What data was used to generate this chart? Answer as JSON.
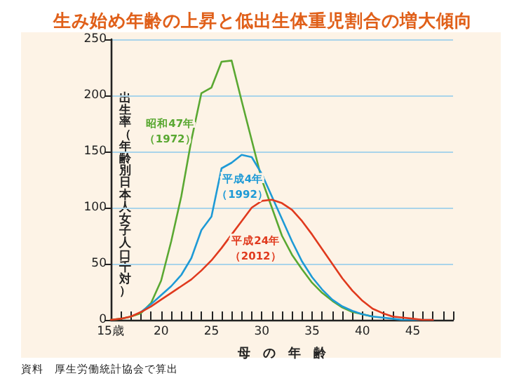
{
  "chart_data": {
    "type": "line",
    "title": "生み始め年齢の上昇と低出生体重児割合の増大傾向",
    "xlabel": "母　の　年　齢",
    "ylabel": "出生率（年齢別日本人女子人口千対）",
    "annotations": [
      "資料　厚生労働統計協会で算出"
    ],
    "x": [
      15,
      16,
      17,
      18,
      19,
      20,
      21,
      22,
      23,
      24,
      25,
      26,
      27,
      28,
      29,
      30,
      31,
      32,
      33,
      34,
      35,
      36,
      37,
      38,
      39,
      40,
      41,
      42,
      43,
      44,
      45,
      46,
      47
    ],
    "series": [
      {
        "name": "昭和47年（1972）",
        "color": "#5aa832",
        "values": [
          0,
          1,
          3,
          6,
          15,
          35,
          70,
          110,
          160,
          202,
          207,
          230,
          231,
          195,
          160,
          125,
          100,
          75,
          58,
          45,
          33,
          24,
          17,
          11,
          7,
          5,
          3,
          null,
          null,
          null,
          null,
          null,
          null
        ]
      },
      {
        "name": "平成4年（1992）",
        "color": "#1e9ad6",
        "values": [
          null,
          null,
          null,
          7,
          14,
          22,
          30,
          40,
          55,
          80,
          92,
          135,
          140,
          147,
          145,
          130,
          110,
          90,
          70,
          52,
          38,
          27,
          18,
          12,
          8,
          5,
          3,
          2,
          1,
          0,
          0,
          0,
          0
        ]
      },
      {
        "name": "平成24年（2012）",
        "color": "#e03a1e",
        "values": [
          0,
          1,
          3,
          7,
          12,
          18,
          24,
          30,
          36,
          44,
          53,
          64,
          76,
          88,
          100,
          106,
          107,
          104,
          98,
          88,
          76,
          63,
          50,
          37,
          26,
          17,
          10,
          6,
          3,
          2,
          1,
          0,
          0
        ]
      }
    ],
    "xlim": [
      15,
      49
    ],
    "xticks": [
      {
        "value": 15,
        "label": "15歳"
      },
      {
        "value": 16,
        "label": null
      },
      {
        "value": 17,
        "label": null
      },
      {
        "value": 18,
        "label": null
      },
      {
        "value": 19,
        "label": null
      },
      20,
      {
        "value": 21,
        "label": null
      },
      {
        "value": 22,
        "label": null
      },
      {
        "value": 23,
        "label": null
      },
      {
        "value": 24,
        "label": null
      },
      25,
      {
        "value": 26,
        "label": null
      },
      {
        "value": 27,
        "label": null
      },
      {
        "value": 28,
        "label": null
      },
      {
        "value": 29,
        "label": null
      },
      30,
      {
        "value": 31,
        "label": null
      },
      {
        "value": 32,
        "label": null
      },
      {
        "value": 33,
        "label": null
      },
      {
        "value": 34,
        "label": null
      },
      35,
      {
        "value": 36,
        "label": null
      },
      {
        "value": 37,
        "label": null
      },
      {
        "value": 38,
        "label": null
      },
      {
        "value": 39,
        "label": null
      },
      40,
      {
        "value": 41,
        "label": null
      },
      {
        "value": 42,
        "label": null
      },
      {
        "value": 43,
        "label": null
      },
      {
        "value": 44,
        "label": null
      },
      45,
      {
        "value": 46,
        "label": null
      },
      {
        "value": 47,
        "label": null
      },
      {
        "value": 48,
        "label": null
      },
      {
        "value": 49,
        "label": null
      }
    ],
    "ylim": [
      0,
      250
    ],
    "yticks": [
      0,
      50,
      100,
      150,
      200,
      250
    ],
    "grid": "y",
    "marker": "none",
    "line_style": "solid",
    "legend": false
  }
}
